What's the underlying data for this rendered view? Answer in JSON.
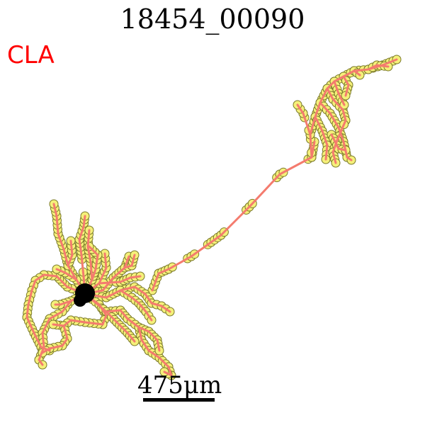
{
  "title": "18454_00090",
  "region_label": "CLA",
  "region_label_color": "#ff0000",
  "scale_bar_label": "475μm",
  "colors": {
    "neurite": "#f47b6e",
    "node_fill": "#f5f07a",
    "node_stroke": "#7a7a2a",
    "soma": "#000000"
  }
}
